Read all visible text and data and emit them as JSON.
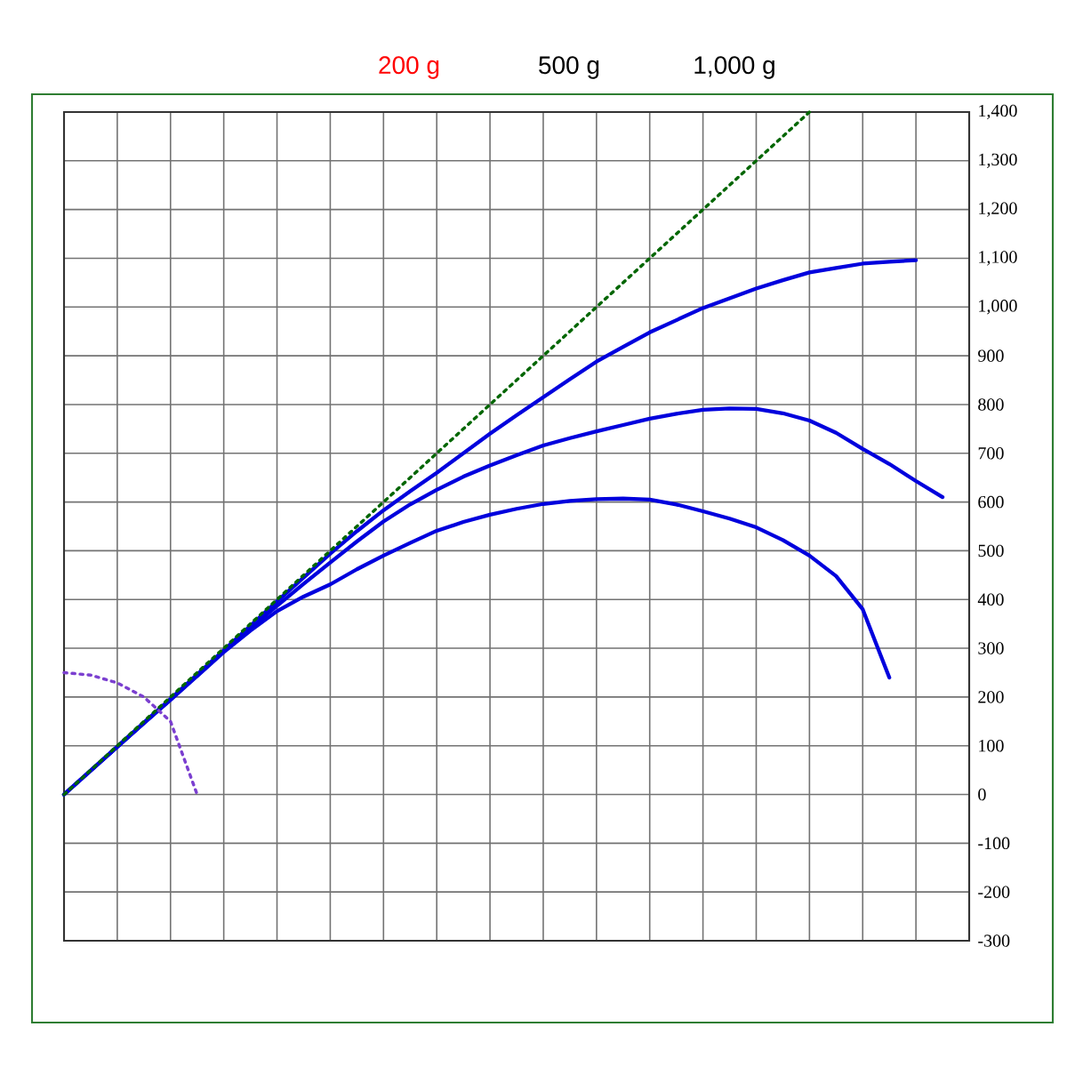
{
  "chart_data": {
    "type": "line",
    "annotations": [
      "200 g",
      "500 g",
      "1,000 g"
    ],
    "categories": [
      null,
      null,
      null,
      null,
      null,
      null,
      null,
      null,
      null,
      null,
      null,
      null,
      null,
      null,
      null,
      null,
      null,
      null,
      null,
      null,
      null,
      null,
      null,
      null,
      null,
      null,
      null,
      null,
      null,
      null,
      null,
      null,
      null,
      null,
      null
    ],
    "ylim": [
      -300,
      1400
    ],
    "yticks": [
      -300,
      -200,
      -100,
      0,
      100,
      200,
      300,
      400,
      500,
      600,
      700,
      800,
      900,
      {
        "value": 1000,
        "label": "1,000"
      },
      {
        "value": 1100,
        "label": "1,100"
      },
      {
        "value": 1200,
        "label": "1,200"
      },
      {
        "value": 1300,
        "label": "1,300"
      },
      {
        "value": 1400,
        "label": "1,400"
      }
    ],
    "grid": true,
    "series": [
      {
        "color": "#0000dd",
        "line_style": "solid",
        "values": [
          0,
          49,
          98,
          147,
          196,
          246,
          296,
          346,
          396,
          445,
          494,
          540,
          583,
          622,
          660,
          700,
          740,
          778,
          815,
          852,
          888,
          918,
          948,
          973,
          998,
          1018,
          1038,
          1055,
          1071,
          1080,
          1089,
          1093,
          1096,
          null,
          null
        ]
      },
      {
        "color": "#0000dd",
        "line_style": "solid",
        "values": [
          0,
          49,
          98,
          147,
          195,
          245,
          294,
          341,
          387,
          432,
          476,
          519,
          560,
          595,
          625,
          652,
          675,
          696,
          716,
          731,
          745,
          758,
          771,
          781,
          789,
          792,
          791,
          782,
          767,
          742,
          709,
          678,
          643,
          610,
          null
        ]
      },
      {
        "color": "#0000dd",
        "line_style": "solid",
        "values": [
          0,
          49,
          98,
          146,
          194,
          243,
          292,
          336,
          376,
          406,
          431,
          462,
          490,
          516,
          541,
          559,
          574,
          586,
          596,
          602,
          606,
          607,
          605,
          595,
          581,
          566,
          548,
          522,
          490,
          448,
          380,
          240,
          null,
          null,
          null
        ]
      },
      {
        "color": "#006600",
        "line_style": "dotted",
        "values": [
          0,
          50,
          100,
          150,
          200,
          250,
          300,
          350,
          400,
          450,
          500,
          550,
          600,
          650,
          700,
          750,
          800,
          850,
          900,
          950,
          1000,
          1050,
          1100,
          1150,
          1200,
          1250,
          1300,
          1350,
          1400,
          null,
          null,
          null,
          null,
          null,
          null
        ]
      },
      {
        "color": "#7b3fd0",
        "line_style": "dotted",
        "values": [
          250,
          245,
          229,
          200,
          150,
          0,
          null,
          null,
          null,
          null,
          null,
          null,
          null,
          null,
          null,
          null,
          null,
          null,
          null,
          null,
          null,
          null,
          null,
          null,
          null,
          null,
          null,
          null,
          null,
          null,
          null,
          null,
          null,
          null,
          null
        ]
      }
    ]
  }
}
